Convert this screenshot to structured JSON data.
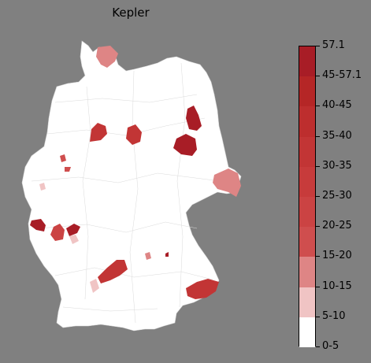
{
  "title": "Kepler",
  "colors": {
    "background": "#808080",
    "land": "#ffffff",
    "borders": "#d4d4d4"
  },
  "legend": {
    "type": "discrete-colorbar",
    "bins": [
      {
        "label": "0-5",
        "color": "#ffffff"
      },
      {
        "label": "5-10",
        "color": "#f0c4c4"
      },
      {
        "label": "10-15",
        "color": "#de8585"
      },
      {
        "label": "15-20",
        "color": "#cf4e4e"
      },
      {
        "label": "20-25",
        "color": "#cb4343"
      },
      {
        "label": "25-30",
        "color": "#c73b3b"
      },
      {
        "label": "30-35",
        "color": "#c23535"
      },
      {
        "label": "35-40",
        "color": "#bd2e2e"
      },
      {
        "label": "40-45",
        "color": "#b52626"
      },
      {
        "label": "45-57.1",
        "color": "#a81d26"
      }
    ],
    "top_label": "57.1"
  },
  "highlighted_regions": [
    {
      "area": "Schleswig north",
      "color": "#de8585"
    },
    {
      "area": "Mecklenburg east",
      "color": "#a81d26"
    },
    {
      "area": "Berlin south",
      "color": "#a81d26"
    },
    {
      "area": "Osnabrueck area",
      "color": "#c23535"
    },
    {
      "area": "Hannover area",
      "color": "#c23535"
    },
    {
      "area": "Goerlitz east",
      "color": "#de8585"
    },
    {
      "area": "Muenster small",
      "color": "#cf4e4e"
    },
    {
      "area": "Kassel small",
      "color": "#cf4e4e"
    },
    {
      "area": "Trier area",
      "color": "#a81d26"
    },
    {
      "area": "Mainz area",
      "color": "#cb4343"
    },
    {
      "area": "Frankfurt area",
      "color": "#a81d26"
    },
    {
      "area": "Nuremberg west",
      "color": "#c23535"
    },
    {
      "area": "Stuttgart west",
      "color": "#f0c4c4"
    },
    {
      "area": "Regensburg area",
      "color": "#de8585"
    },
    {
      "area": "Passau area",
      "color": "#c23535"
    }
  ]
}
